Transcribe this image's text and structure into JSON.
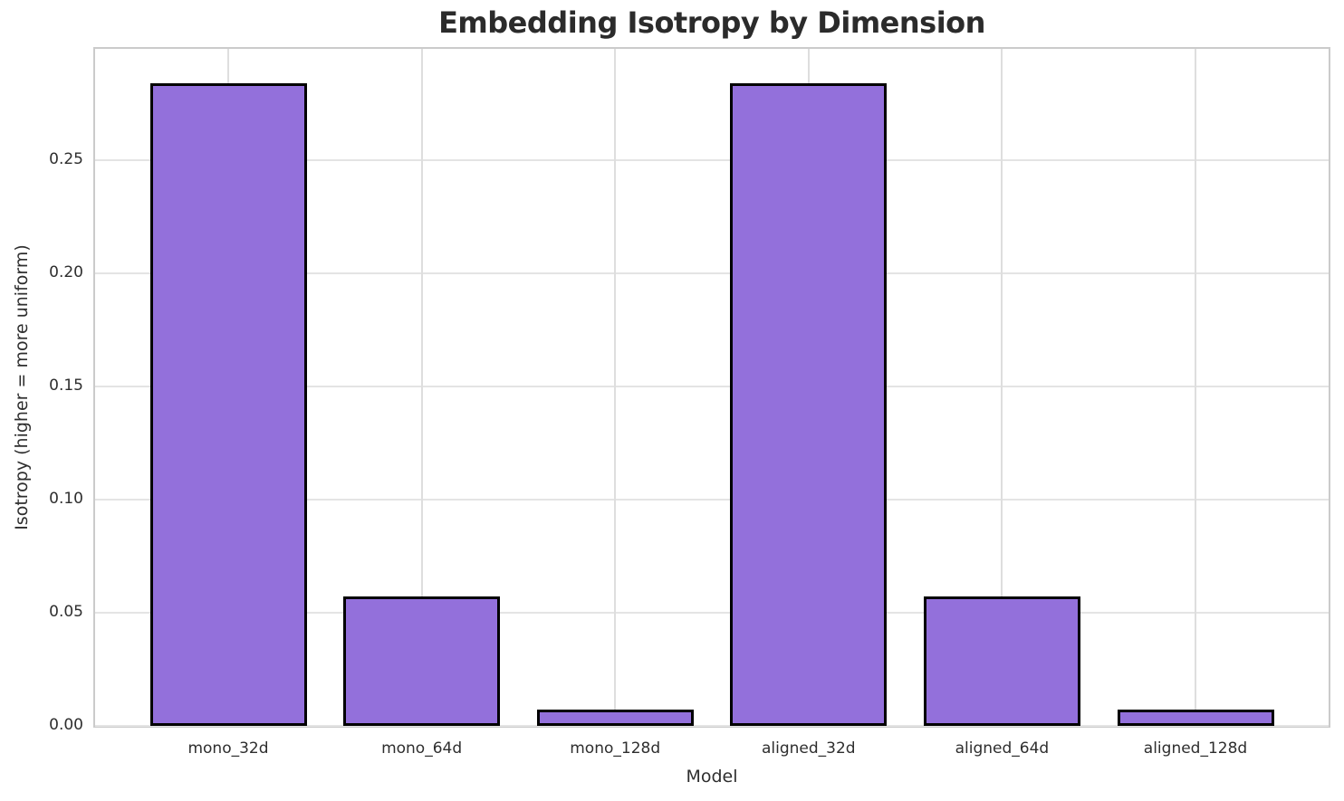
{
  "chart_data": {
    "type": "bar",
    "title": "Embedding Isotropy by Dimension",
    "xlabel": "Model",
    "ylabel": "Isotropy (higher = more uniform)",
    "categories": [
      "mono_32d",
      "mono_64d",
      "mono_128d",
      "aligned_32d",
      "aligned_64d",
      "aligned_128d"
    ],
    "values": [
      0.284,
      0.057,
      0.007,
      0.284,
      0.057,
      0.007
    ],
    "ylim": [
      0,
      0.299
    ],
    "yticks": [
      0.0,
      0.05,
      0.1,
      0.15,
      0.2,
      0.25
    ],
    "ytick_labels": [
      "0.00",
      "0.05",
      "0.10",
      "0.15",
      "0.20",
      "0.25"
    ],
    "grid": "both",
    "legend": "none",
    "colors": {
      "bar_fill": "#9370db",
      "bar_edge": "#000000",
      "grid_h": "#e4e4e4",
      "grid_v": "#dedede",
      "spine": "#cbcbcb",
      "text": "#2e2e2e",
      "title_text": "#2b2b2b",
      "background": "#ffffff"
    }
  }
}
